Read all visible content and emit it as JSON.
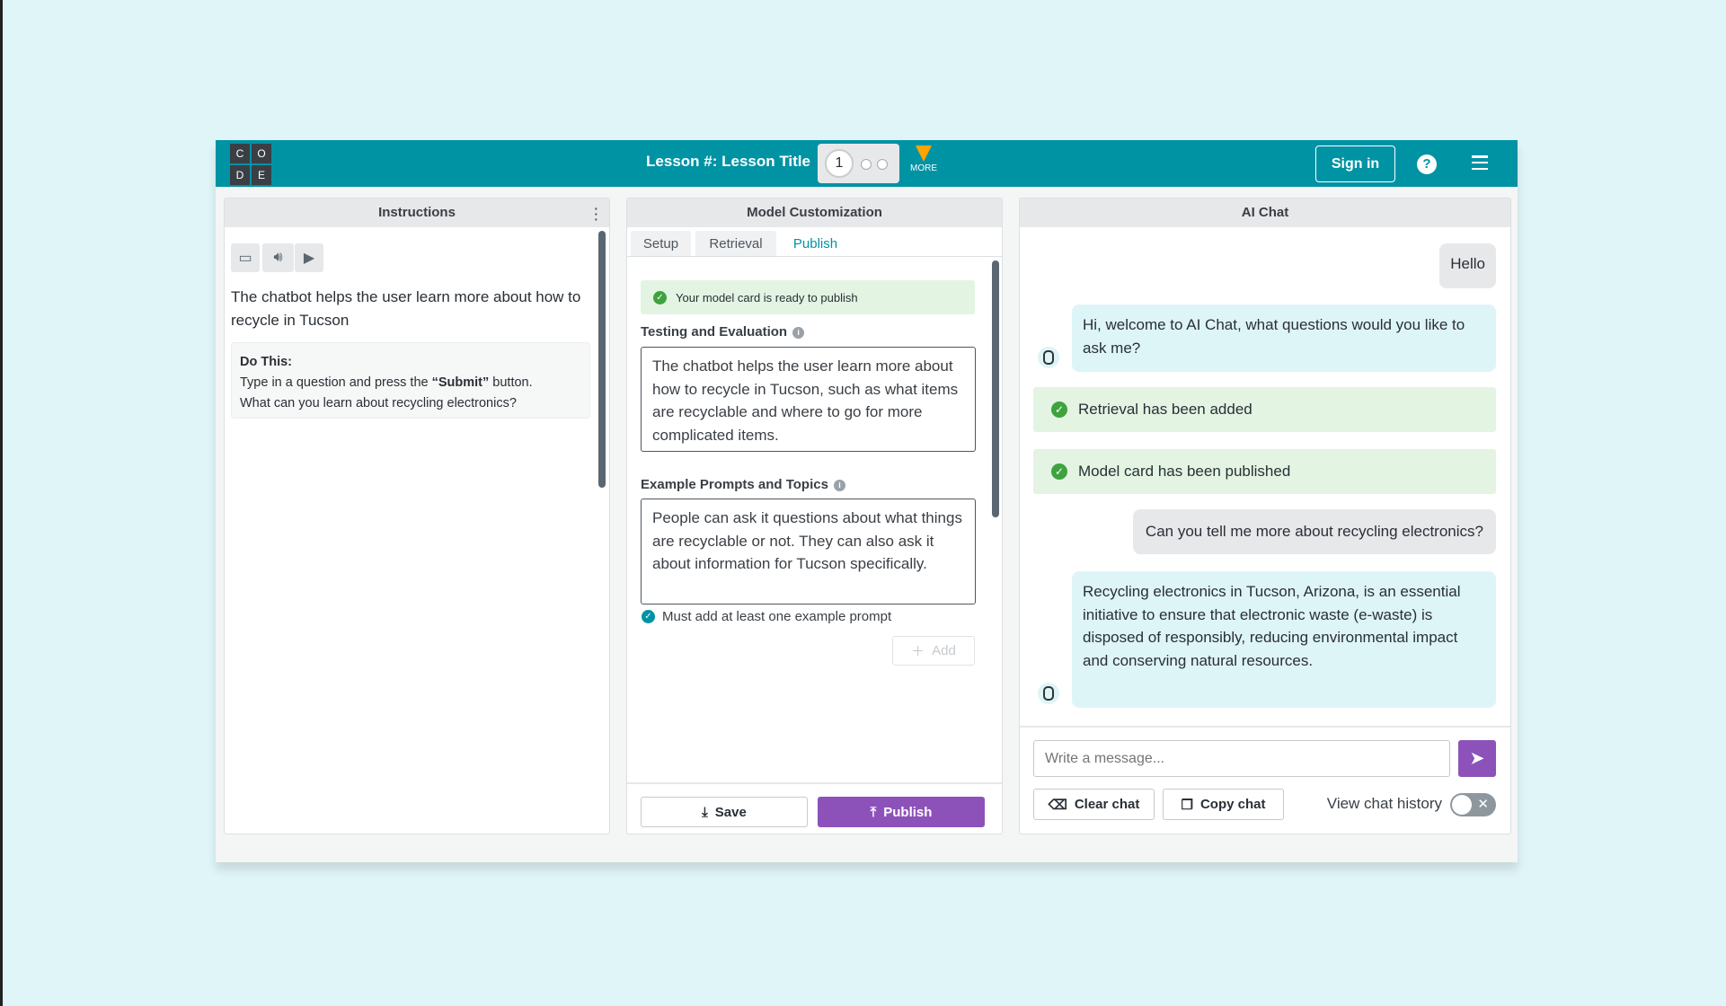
{
  "header": {
    "logo_letters": [
      "C",
      "O",
      "D",
      "E"
    ],
    "lesson_title": "Lesson #: Lesson Title",
    "progress": {
      "current_level": "1",
      "total_levels": 3
    },
    "more_label": "MORE",
    "sign_in": "Sign in",
    "help_icon": "?",
    "colors": {
      "header": "#0093a4",
      "accent": "#8c52ba",
      "more": "#ffa400"
    }
  },
  "instructions": {
    "title": "Instructions",
    "text": "The chatbot helps the user learn more about how to recycle in Tucson",
    "do_this_title": "Do This:",
    "do_this_pre": "Type in a question and press the ",
    "do_this_bold": "“Submit”",
    "do_this_post": " button.",
    "do_this_line2": "What can you learn about recycling electronics?"
  },
  "model": {
    "title": "Model Customization",
    "tabs": [
      {
        "label": "Setup"
      },
      {
        "label": "Retrieval"
      },
      {
        "label": "Publish",
        "active": true
      }
    ],
    "ready_banner": "Your model card is ready to publish",
    "testing_label": "Testing and Evaluation",
    "testing_value": "The chatbot helps the user learn more about how to recycle in Tucson, such as what items are recyclable and where to go for more complicated items.",
    "prompts_label": "Example Prompts and Topics",
    "prompts_value": "People can ask it questions about what things are recyclable or not. They can also ask it about information for Tucson specifically.",
    "requirement": "Must add at least one example prompt",
    "add_label": "Add",
    "save_label": "Save",
    "publish_label": "Publish"
  },
  "chat": {
    "title": "AI Chat",
    "messages": [
      {
        "role": "user",
        "text": "Hello"
      },
      {
        "role": "bot",
        "text": "Hi, welcome to AI Chat, what questions would you like to ask me?"
      },
      {
        "role": "status",
        "text": "Retrieval has been added"
      },
      {
        "role": "status",
        "text": "Model card has been published"
      },
      {
        "role": "user",
        "text": "Can you tell me more about recycling electronics?"
      },
      {
        "role": "bot",
        "text": "Recycling electronics in Tucson, Arizona, is an essential initiative to ensure that electronic waste (e-waste) is disposed of responsibly, reducing environmental impact and conserving natural resources."
      }
    ],
    "input_placeholder": "Write a message...",
    "clear_label": "Clear chat",
    "copy_label": "Copy chat",
    "history_label": "View chat history",
    "history_toggle_on": false
  }
}
